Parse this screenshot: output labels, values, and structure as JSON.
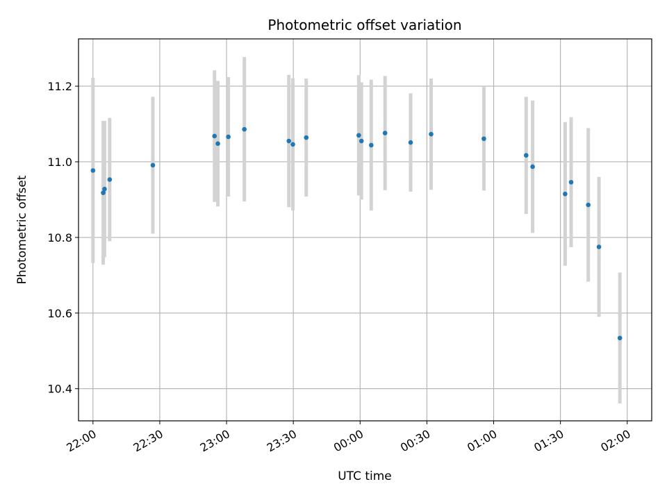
{
  "chart_data": {
    "type": "scatter",
    "title": "Photometric offset variation",
    "xlabel": "UTC time",
    "ylabel": "Photometric offset",
    "grid": true,
    "xlim": [
      -6.5,
      251
    ],
    "ylim": [
      10.315,
      11.325
    ],
    "x_unit": "minutes after 22:00 UTC",
    "x_ticks": [
      {
        "value": 0,
        "label": "22:00"
      },
      {
        "value": 30,
        "label": "22:30"
      },
      {
        "value": 60,
        "label": "23:00"
      },
      {
        "value": 90,
        "label": "23:30"
      },
      {
        "value": 120,
        "label": "00:00"
      },
      {
        "value": 150,
        "label": "00:30"
      },
      {
        "value": 180,
        "label": "01:00"
      },
      {
        "value": 210,
        "label": "01:30"
      },
      {
        "value": 240,
        "label": "02:00"
      }
    ],
    "y_ticks": [
      {
        "value": 10.4,
        "label": "10.4"
      },
      {
        "value": 10.6,
        "label": "10.6"
      },
      {
        "value": 10.8,
        "label": "10.8"
      },
      {
        "value": 11.0,
        "label": "11.0"
      },
      {
        "value": 11.2,
        "label": "11.2"
      }
    ],
    "colors": {
      "point": "#1f77b4",
      "errorbar": "#d3d3d3",
      "grid": "#b0b0b0"
    },
    "points": [
      {
        "t": 0.0,
        "y": 10.977,
        "err": 0.245
      },
      {
        "t": 4.6,
        "y": 10.918,
        "err": 0.19
      },
      {
        "t": 5.2,
        "y": 10.928,
        "err": 0.18
      },
      {
        "t": 7.5,
        "y": 10.953,
        "err": 0.163
      },
      {
        "t": 26.9,
        "y": 10.991,
        "err": 0.181
      },
      {
        "t": 54.6,
        "y": 11.068,
        "err": 0.174
      },
      {
        "t": 56.1,
        "y": 11.048,
        "err": 0.166
      },
      {
        "t": 60.8,
        "y": 11.066,
        "err": 0.158
      },
      {
        "t": 68.0,
        "y": 11.086,
        "err": 0.191
      },
      {
        "t": 88.0,
        "y": 11.055,
        "err": 0.175
      },
      {
        "t": 89.8,
        "y": 11.046,
        "err": 0.175
      },
      {
        "t": 95.8,
        "y": 11.064,
        "err": 0.156
      },
      {
        "t": 119.4,
        "y": 11.07,
        "err": 0.159
      },
      {
        "t": 120.6,
        "y": 11.055,
        "err": 0.155
      },
      {
        "t": 125.0,
        "y": 11.044,
        "err": 0.173
      },
      {
        "t": 131.2,
        "y": 11.076,
        "err": 0.151
      },
      {
        "t": 142.7,
        "y": 11.051,
        "err": 0.13
      },
      {
        "t": 151.9,
        "y": 11.073,
        "err": 0.147
      },
      {
        "t": 175.6,
        "y": 11.061,
        "err": 0.137
      },
      {
        "t": 194.6,
        "y": 11.017,
        "err": 0.155
      },
      {
        "t": 197.5,
        "y": 10.987,
        "err": 0.175
      },
      {
        "t": 212.1,
        "y": 10.915,
        "err": 0.19
      },
      {
        "t": 214.8,
        "y": 10.946,
        "err": 0.172
      },
      {
        "t": 222.5,
        "y": 10.886,
        "err": 0.203
      },
      {
        "t": 227.3,
        "y": 10.775,
        "err": 0.185
      },
      {
        "t": 236.7,
        "y": 10.534,
        "err": 0.173
      }
    ]
  }
}
